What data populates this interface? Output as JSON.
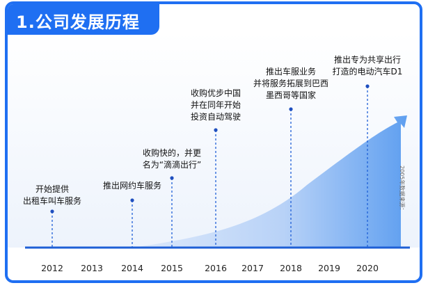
{
  "title": "1.公司发展历程",
  "years": [
    "2012",
    "2013",
    "2014",
    "2015",
    "2016",
    "2017",
    "2018",
    "2019",
    "2020"
  ],
  "events": [
    {
      "year": "2012",
      "lines": [
        "开始提供",
        "出租车叫车服务"
      ]
    },
    {
      "year": "2014",
      "lines": [
        "推出网约车服务"
      ]
    },
    {
      "year": "2015",
      "lines": [
        "收购快的，并更",
        "名为“滴滴出行”"
      ]
    },
    {
      "year": "2016",
      "lines": [
        "收购优步中国",
        "并在同年开始",
        "投资自动驾驶"
      ]
    },
    {
      "year": "2018",
      "lines": [
        "推出车服业务",
        "并将服务拓展到巴西",
        "墨西哥等国家"
      ]
    },
    {
      "year": "2020",
      "lines": [
        "推出专为共享出行",
        "打造的电动汽车D1"
      ]
    }
  ],
  "side_note": "2005年数据来源：",
  "colors": {
    "accent": "#1f6ff2",
    "line": "#1e5fd6",
    "dot": "#1f4fbf"
  }
}
